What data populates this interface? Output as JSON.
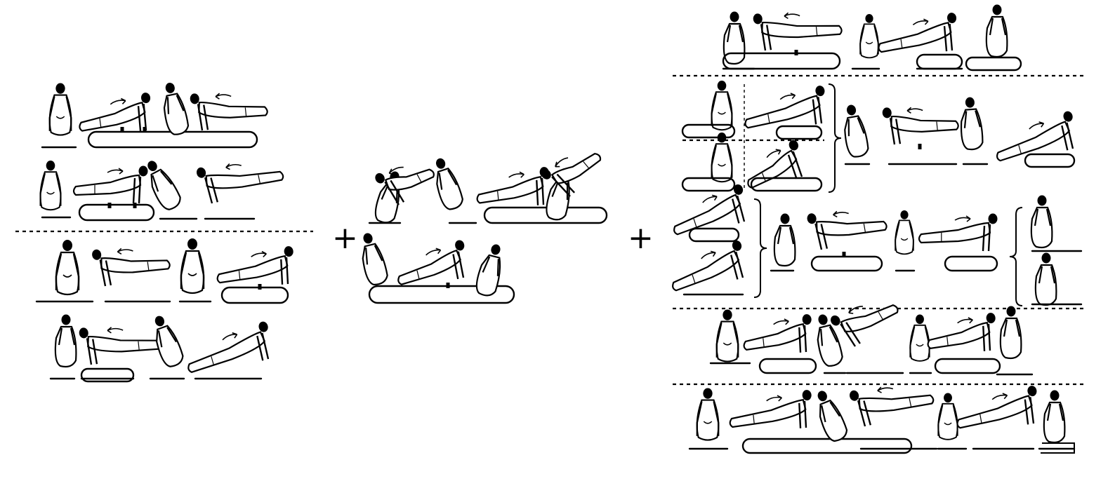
{
  "figure": {
    "plus_1": "+",
    "plus_2": "+",
    "ink_color": "#000000",
    "background": "#ffffff"
  }
}
